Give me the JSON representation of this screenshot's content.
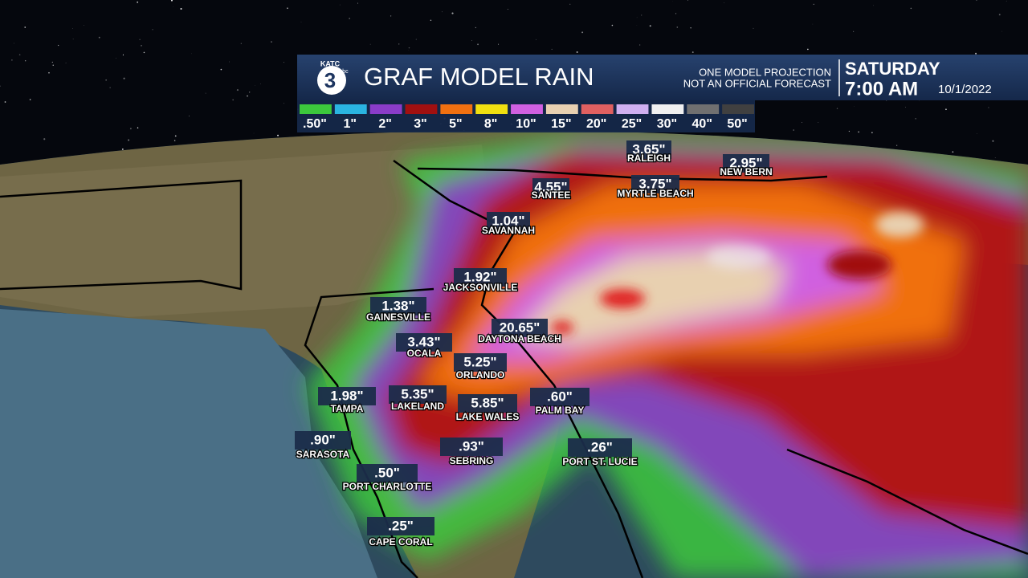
{
  "header": {
    "logo": {
      "station": "KATC",
      "number": "3",
      "network": "abc"
    },
    "title": "GRAF MODEL RAIN",
    "disclaimer": [
      "ONE MODEL PROJECTION",
      "NOT AN OFFICIAL FORECAST"
    ],
    "day": "SATURDAY",
    "time": "7:00 AM",
    "date": "10/1/2022"
  },
  "legend": [
    {
      "label": ".50\"",
      "color": "#3cc83c"
    },
    {
      "label": "1\"",
      "color": "#2ab4e0"
    },
    {
      "label": "2\"",
      "color": "#8a3cc8"
    },
    {
      "label": "3\"",
      "color": "#a01010"
    },
    {
      "label": "5\"",
      "color": "#f07010"
    },
    {
      "label": "8\"",
      "color": "#f0e010"
    },
    {
      "label": "10\"",
      "color": "#d060e0"
    },
    {
      "label": "15\"",
      "color": "#e8d0b0"
    },
    {
      "label": "20\"",
      "color": "#e06060"
    },
    {
      "label": "25\"",
      "color": "#d0b0f0"
    },
    {
      "label": "30\"",
      "color": "#f0f0f0"
    },
    {
      "label": "40\"",
      "color": "#707070"
    },
    {
      "label": "50\"",
      "color": "#404040"
    }
  ],
  "cities": [
    {
      "value": "3.65\"",
      "name": "RALEIGH"
    },
    {
      "value": "2.95\"",
      "name": "NEW BERN"
    },
    {
      "value": "4.55\"",
      "name": "SANTEE"
    },
    {
      "value": "3.75\"",
      "name": "MYRTLE BEACH"
    },
    {
      "value": "1.04\"",
      "name": "SAVANNAH"
    },
    {
      "value": "1.92\"",
      "name": "JACKSONVILLE"
    },
    {
      "value": "1.38\"",
      "name": "GAINESVILLE"
    },
    {
      "value": "20.65\"",
      "name": "DAYTONA BEACH"
    },
    {
      "value": "3.43\"",
      "name": "OCALA"
    },
    {
      "value": "5.25\"",
      "name": "ORLANDO"
    },
    {
      "value": "1.98\"",
      "name": "TAMPA"
    },
    {
      "value": "5.35\"",
      "name": "LAKELAND"
    },
    {
      "value": "5.85\"",
      "name": "LAKE WALES"
    },
    {
      "value": ".60\"",
      "name": "PALM BAY"
    },
    {
      "value": ".90\"",
      "name": "SARASOTA"
    },
    {
      "value": ".93\"",
      "name": "SEBRING"
    },
    {
      "value": ".26\"",
      "name": "PORT ST. LUCIE"
    },
    {
      "value": ".50\"",
      "name": "PORT CHARLOTTE"
    },
    {
      "value": ".25\"",
      "name": "CAPE CORAL"
    }
  ]
}
